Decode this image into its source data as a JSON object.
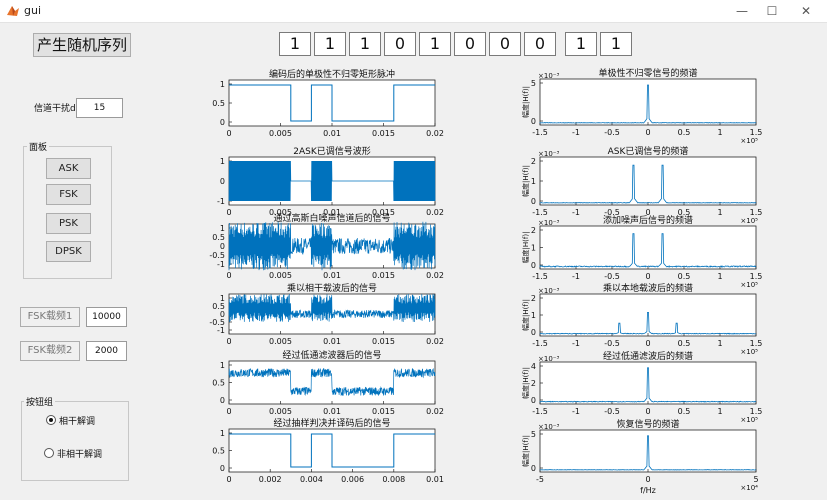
{
  "window": {
    "title": "gui",
    "min": "—",
    "max": "☐",
    "close": "✕"
  },
  "generate_button": "产生随机序列",
  "bits": [
    "1",
    "1",
    "1",
    "0",
    "1",
    "0",
    "0",
    "0",
    "1",
    "1"
  ],
  "snr": {
    "label": "信道干扰dB",
    "value": "15"
  },
  "panel": {
    "title": "面板",
    "buttons": [
      "ASK",
      "FSK",
      "PSK",
      "DPSK"
    ]
  },
  "fsk": {
    "carrier1_label": "FSK载频1",
    "carrier1_value": "10000",
    "carrier2_label": "FSK载频2",
    "carrier2_value": "2000"
  },
  "button_group": {
    "title": "按钮组",
    "coherent": "相干解调",
    "noncoherent": "非相干解调",
    "selected": "相干解调"
  },
  "plots": {
    "p1": {
      "title": "编码后的单极性不归零矩形脉冲",
      "yticks": [
        "1",
        "0.5",
        "0"
      ],
      "xticks": [
        "0",
        "0.005",
        "0.01",
        "0.015",
        "0.02"
      ]
    },
    "p2": {
      "title": "2ASK已调信号波形",
      "yticks": [
        "1",
        "0",
        "-1"
      ],
      "xticks": [
        "0",
        "0.005",
        "0.01",
        "0.015",
        "0.02"
      ]
    },
    "p3": {
      "title": "通过高斯白噪声信道后的信号",
      "yticks": [
        "1",
        "0.5",
        "0",
        "-0.5",
        "-1"
      ],
      "xticks": [
        "0",
        "0.005",
        "0.01",
        "0.015",
        "0.02"
      ]
    },
    "p4": {
      "title": "乘以相干载波后的信号",
      "yticks": [
        "1",
        "0.5",
        "0",
        "-0.5",
        "-1"
      ],
      "xticks": [
        "0",
        "0.005",
        "0.01",
        "0.015",
        "0.02"
      ]
    },
    "p5": {
      "title": "经过低通滤波器后的信号",
      "yticks": [
        "1",
        "0.5",
        "0"
      ],
      "xticks": [
        "0",
        "0.005",
        "0.01",
        "0.015",
        "0.02"
      ]
    },
    "p6": {
      "title": "经过抽样判决并译码后的信号",
      "yticks": [
        "1",
        "0.5",
        "0"
      ],
      "xticks": [
        "0",
        "0.002",
        "0.004",
        "0.006",
        "0.008",
        "0.01"
      ]
    },
    "s1": {
      "title": "单极性不归零信号的频谱",
      "exp": "×10⁻³",
      "yticks": [
        "5",
        "0"
      ],
      "xticks": [
        "-1.5",
        "-1",
        "-0.5",
        "0",
        "0.5",
        "1",
        "1.5"
      ],
      "xexp": "×10⁵",
      "ylabel": "幅度|H(f)|"
    },
    "s2": {
      "title": "ASK已调信号的频谱",
      "exp": "×10⁻³",
      "yticks": [
        "2",
        "1",
        "0"
      ],
      "xticks": [
        "-1.5",
        "-1",
        "-0.5",
        "0",
        "0.5",
        "1",
        "1.5"
      ],
      "xexp": "×10⁵",
      "ylabel": "幅度|H(f)|"
    },
    "s3": {
      "title": "添加噪声后信号的频谱",
      "exp": "×10⁻³",
      "yticks": [
        "2",
        "1",
        "0"
      ],
      "xticks": [
        "-1.5",
        "-1",
        "-0.5",
        "0",
        "0.5",
        "1",
        "1.5"
      ],
      "xexp": "×10⁵",
      "ylabel": "幅度|H(f)|"
    },
    "s4": {
      "title": "乘以本地载波后的频谱",
      "exp": "×10⁻³",
      "yticks": [
        "2",
        "1",
        "0"
      ],
      "xticks": [
        "-1.5",
        "-1",
        "-0.5",
        "0",
        "0.5",
        "1",
        "1.5"
      ],
      "xexp": "×10⁵",
      "ylabel": "幅度|H(f)|"
    },
    "s5": {
      "title": "经过低通滤波后的频谱",
      "exp": "×10⁻³",
      "yticks": [
        "4",
        "2",
        "0"
      ],
      "xticks": [
        "-1.5",
        "-1",
        "-0.5",
        "0",
        "0.5",
        "1",
        "1.5"
      ],
      "xexp": "×10⁵",
      "ylabel": "幅度|H(f)|"
    },
    "s6": {
      "title": "恢复信号的频谱",
      "exp": "×10⁻³",
      "yticks": [
        "5",
        "0"
      ],
      "xticks": [
        "-5",
        "0",
        "5"
      ],
      "xexp": "×10⁴",
      "ylabel": "幅度|H(f)|",
      "xlabel": "f/Hz"
    }
  },
  "colors": {
    "trace": "#0072bd",
    "axis": "#262626"
  }
}
